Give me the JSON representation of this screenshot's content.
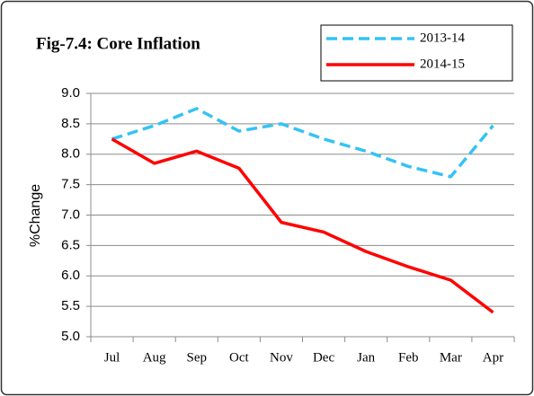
{
  "chart_data": {
    "type": "line",
    "title": "Fig-7.4: Core Inflation",
    "ylabel": "%Change",
    "categories": [
      "Jul",
      "Aug",
      "Sep",
      "Oct",
      "Nov",
      "Dec",
      "Jan",
      "Feb",
      "Mar",
      "Apr"
    ],
    "series": [
      {
        "name": "2013-14",
        "color": "#33c3f5",
        "line_style": "dashed",
        "values": [
          8.25,
          8.47,
          8.75,
          8.38,
          8.5,
          8.25,
          8.05,
          7.8,
          7.63,
          8.47
        ]
      },
      {
        "name": "2014-15",
        "color": "#ff0000",
        "line_style": "solid",
        "values": [
          8.25,
          7.85,
          8.05,
          7.77,
          6.88,
          6.72,
          6.4,
          6.15,
          5.93,
          5.4
        ]
      }
    ],
    "ylim": [
      5,
      9
    ],
    "yticks": [
      {
        "value": 5,
        "label": "5.0"
      },
      5.5,
      {
        "value": 6,
        "label": "6.0"
      },
      6.5,
      {
        "value": 7,
        "label": "7.0"
      },
      7.5,
      {
        "value": 8,
        "label": "8.0"
      },
      8.5,
      {
        "value": 9,
        "label": "9.0"
      }
    ],
    "grid": true,
    "legend_position": "top-right"
  }
}
